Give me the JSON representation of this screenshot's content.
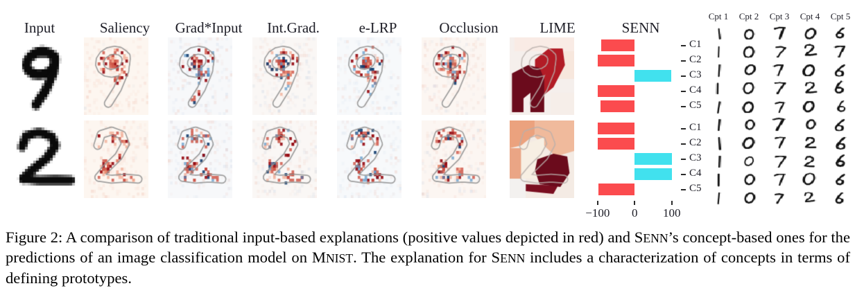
{
  "figure": {
    "columns": [
      {
        "label": "Input",
        "type": "input"
      },
      {
        "label": "Saliency",
        "type": "heatmap",
        "palette": "red"
      },
      {
        "label": "Grad*Input",
        "type": "heatmap",
        "palette": "div1"
      },
      {
        "label": "Int.Grad.",
        "type": "heatmap",
        "palette": "div2"
      },
      {
        "label": "e-LRP",
        "type": "heatmap",
        "palette": "div3"
      },
      {
        "label": "Occlusion",
        "type": "heatmap",
        "palette": "warmdiv"
      },
      {
        "label": "LIME",
        "type": "lime"
      },
      {
        "label": "SENN",
        "type": "senn"
      }
    ],
    "rows": [
      {
        "digit": "9"
      },
      {
        "digit": "2"
      }
    ]
  },
  "senn": {
    "title": "SENN",
    "concepts": [
      "C1",
      "C2",
      "C3",
      "C4",
      "C5"
    ],
    "axis": {
      "tick_values": [
        -100,
        0,
        100
      ],
      "tick_labels": [
        "−100",
        "0",
        "100"
      ]
    },
    "colors": {
      "positive_bar": "#41e1ee",
      "negative_bar": "#fb4b4e"
    },
    "groups": [
      {
        "input_digit": "9",
        "values": [
          -91,
          -100,
          98,
          -100,
          -93
        ]
      },
      {
        "input_digit": "2",
        "values": [
          -100,
          -100,
          100,
          100,
          -97
        ]
      }
    ]
  },
  "prototypes": {
    "headers": [
      "Cpt 1",
      "Cpt 2",
      "Cpt 3",
      "Cpt 4",
      "Cpt 5"
    ],
    "rows": [
      [
        "1",
        "0",
        "7",
        "0",
        "6"
      ],
      [
        "1",
        "0",
        "7",
        "2",
        "7"
      ],
      [
        "1",
        "0",
        "7",
        "0",
        "6"
      ],
      [
        "1",
        "0",
        "7",
        "2",
        "6"
      ],
      [
        "1",
        "0",
        "7",
        "0",
        "6"
      ],
      [
        "1",
        "0",
        "7",
        "0",
        "6"
      ],
      [
        "1",
        "0",
        "7",
        "2",
        "6"
      ],
      [
        "1",
        "0",
        "7",
        "2",
        "6"
      ],
      [
        "1",
        "0",
        "7",
        "0",
        "6"
      ],
      [
        "1",
        "0",
        "7",
        "2",
        "6"
      ]
    ]
  },
  "lime_colors": {
    "strong_positive": "#6b0b1c",
    "positive": "#b21c26",
    "salmon": "#eba27e",
    "peach": "#f0ba9c"
  },
  "caption": {
    "segments": [
      {
        "text": "Figure 2: A comparison of traditional input-based explanations (positive values depicted in red) and ",
        "sc": false
      },
      {
        "text": "SENN",
        "sc": true
      },
      {
        "text": "’s concept-based ones for the predictions of an image classification model on ",
        "sc": false
      },
      {
        "text": "MNIST",
        "sc": true
      },
      {
        "text": ". The explanation for ",
        "sc": false
      },
      {
        "text": "SENN",
        "sc": true
      },
      {
        "text": " includes a characterization of concepts in terms of defining prototypes.",
        "sc": false
      }
    ]
  },
  "chart_data": [
    {
      "type": "bar",
      "orientation": "horizontal",
      "title": "SENN (input 9)",
      "categories": [
        "C1",
        "C2",
        "C3",
        "C4",
        "C5"
      ],
      "values": [
        -91,
        -100,
        98,
        -100,
        -93
      ],
      "xlim": [
        -130,
        135
      ],
      "xticks": [
        -100,
        0,
        100
      ],
      "grid": false,
      "colors": {
        "positive": "#41e1ee",
        "negative": "#fb4b4e"
      }
    },
    {
      "type": "bar",
      "orientation": "horizontal",
      "title": "SENN (input 2)",
      "categories": [
        "C1",
        "C2",
        "C3",
        "C4",
        "C5"
      ],
      "values": [
        -100,
        -100,
        100,
        100,
        -97
      ],
      "xlim": [
        -130,
        135
      ],
      "xticks": [
        -100,
        0,
        100
      ],
      "grid": false,
      "colors": {
        "positive": "#41e1ee",
        "negative": "#fb4b4e"
      }
    }
  ]
}
